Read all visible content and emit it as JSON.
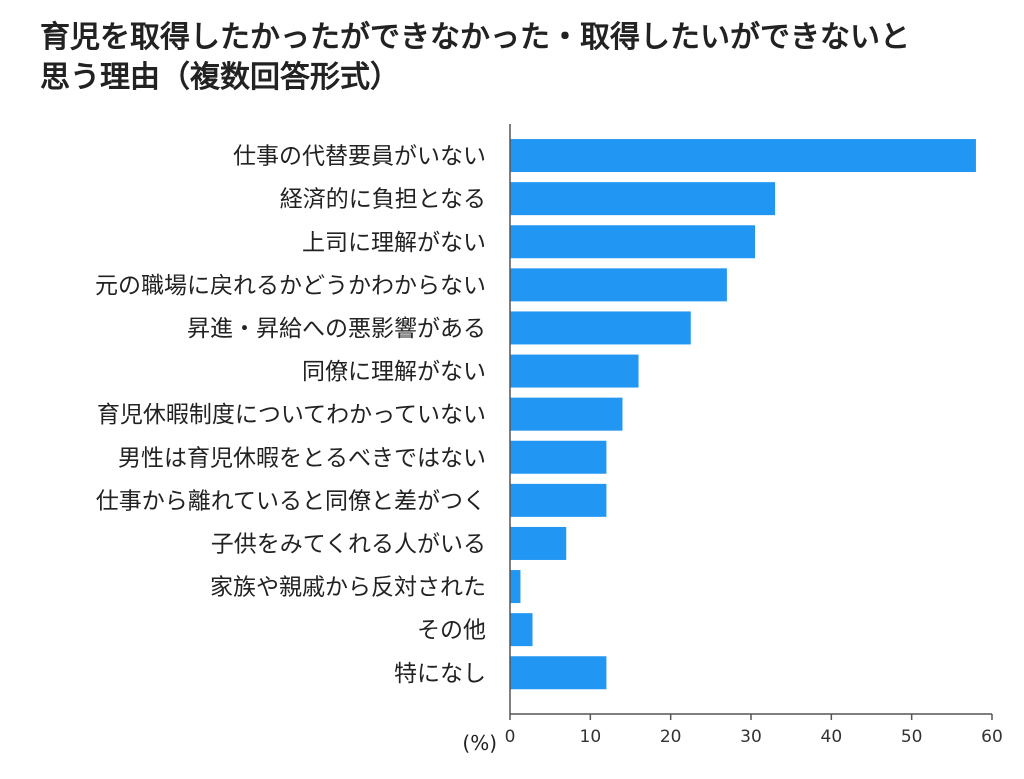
{
  "chart_data": {
    "type": "bar",
    "orientation": "horizontal",
    "title_lines": [
      "育児を取得したかったができなかった・取得したいができないと",
      "思う理由（複数回答形式）"
    ],
    "categories": [
      "仕事の代替要員がいない",
      "経済的に負担となる",
      "上司に理解がない",
      "元の職場に戻れるかどうかわからない",
      "昇進・昇給への悪影響がある",
      "同僚に理解がない",
      "育児休暇制度についてわかっていない",
      "男性は育児休暇をとるべきではない",
      "仕事から離れていると同僚と差がつく",
      "子供をみてくれる人がいる",
      "家族や親戚から反対された",
      "その他",
      "特になし"
    ],
    "values": [
      58,
      33,
      30.5,
      27,
      22.5,
      16,
      14,
      12,
      12,
      7,
      1.3,
      2.8,
      12
    ],
    "xlabel": "(%)",
    "xlim": [
      0,
      60
    ],
    "xticks": [
      0,
      10,
      20,
      30,
      40,
      50,
      60
    ],
    "bar_color": "#2196F3",
    "grid": false,
    "legend": "none"
  }
}
